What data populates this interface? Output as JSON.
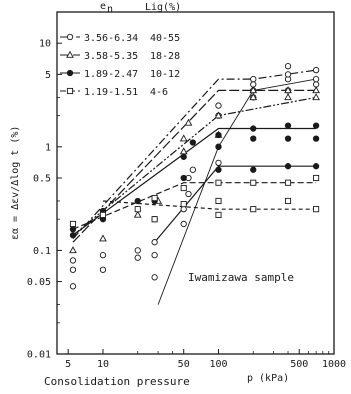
{
  "chart_data": {
    "type": "scatter",
    "xlabel": "Consolidation pressure",
    "xunit": "p (kPa)",
    "ylabel": "εα = Δεv/Δlog t  (%)",
    "annotation": "Iwamizawa sample",
    "x_scale": "log",
    "y_scale": "log",
    "xlim": [
      4,
      1000
    ],
    "ylim": [
      0.01,
      20
    ],
    "x_ticks": [
      5,
      10,
      50,
      100,
      500,
      1000
    ],
    "x_tick_labels": [
      "5",
      "10",
      "50",
      "100",
      "500",
      "1000"
    ],
    "y_ticks": [
      0.01,
      0.05,
      0.1,
      0.5,
      1,
      5,
      10
    ],
    "y_tick_labels": [
      "0.01",
      "0.05",
      "0.1",
      "0.5",
      "1",
      "5",
      "10"
    ],
    "legend": {
      "placement": "top-left",
      "header_e": "e",
      "header_e_sub": "n",
      "header_lig": "Lig(%)",
      "entries": [
        {
          "symbol": "open-circle",
          "e_range": "3.56-6.34",
          "lig": "40-55"
        },
        {
          "symbol": "open-triangle",
          "e_range": "3.58-5.35",
          "lig": "18-28"
        },
        {
          "symbol": "filled-circle",
          "e_range": "1.89-2.47",
          "lig": "10-12"
        },
        {
          "symbol": "open-square",
          "e_range": "1.19-1.51",
          "lig": "4-6"
        }
      ]
    },
    "series": [
      {
        "symbol": "open-circle",
        "points": [
          [
            5.5,
            0.045
          ],
          [
            5.5,
            0.065
          ],
          [
            5.5,
            0.08
          ],
          [
            10,
            0.065
          ],
          [
            10,
            0.09
          ],
          [
            20,
            0.085
          ],
          [
            20,
            0.1
          ],
          [
            28,
            0.055
          ],
          [
            28,
            0.09
          ],
          [
            28,
            0.12
          ],
          [
            50,
            0.18
          ],
          [
            50,
            0.25
          ],
          [
            55,
            0.35
          ],
          [
            55,
            0.5
          ],
          [
            60,
            0.6
          ],
          [
            100,
            0.7
          ],
          [
            100,
            1.0
          ],
          [
            100,
            2.0
          ],
          [
            100,
            2.5
          ],
          [
            200,
            3.0
          ],
          [
            200,
            3.5
          ],
          [
            200,
            4.0
          ],
          [
            200,
            4.5
          ],
          [
            400,
            3.5
          ],
          [
            400,
            4.5
          ],
          [
            400,
            5.0
          ],
          [
            400,
            6.0
          ],
          [
            700,
            4.0
          ],
          [
            700,
            4.5
          ],
          [
            700,
            5.5
          ]
        ],
        "fit_lines": [
          {
            "style": "dash-dot",
            "points": [
              [
                5.5,
                0.13
              ],
              [
                100,
                4.5
              ],
              [
                200,
                4.5
              ],
              [
                700,
                5.5
              ]
            ]
          },
          {
            "style": "solid-thin",
            "points": [
              [
                30,
                0.03
              ],
              [
                100,
                1.0
              ],
              [
                200,
                3.5
              ],
              [
                700,
                4.5
              ]
            ]
          }
        ]
      },
      {
        "symbol": "open-triangle",
        "points": [
          [
            5.5,
            0.1
          ],
          [
            10,
            0.13
          ],
          [
            20,
            0.22
          ],
          [
            30,
            0.3
          ],
          [
            50,
            0.9
          ],
          [
            50,
            1.2
          ],
          [
            55,
            1.7
          ],
          [
            100,
            1.3
          ],
          [
            100,
            2.0
          ],
          [
            200,
            3.0
          ],
          [
            200,
            3.5
          ],
          [
            400,
            3.0
          ],
          [
            400,
            3.5
          ],
          [
            700,
            3.0
          ],
          [
            700,
            3.5
          ]
        ],
        "fit_lines": [
          {
            "style": "long-dash",
            "points": [
              [
                5.5,
                0.12
              ],
              [
                100,
                3.5
              ],
              [
                700,
                3.5
              ]
            ]
          },
          {
            "style": "dash-dot-dot",
            "points": [
              [
                5.5,
                0.14
              ],
              [
                100,
                2.0
              ],
              [
                700,
                3.0
              ]
            ]
          }
        ]
      },
      {
        "symbol": "filled-circle",
        "points": [
          [
            5.5,
            0.14
          ],
          [
            5.5,
            0.16
          ],
          [
            10,
            0.2
          ],
          [
            10,
            0.24
          ],
          [
            20,
            0.3
          ],
          [
            28,
            0.2
          ],
          [
            28,
            0.3
          ],
          [
            50,
            0.5
          ],
          [
            50,
            0.8
          ],
          [
            60,
            1.1
          ],
          [
            100,
            0.6
          ],
          [
            100,
            1.0
          ],
          [
            100,
            1.3
          ],
          [
            200,
            0.6
          ],
          [
            200,
            1.2
          ],
          [
            200,
            1.5
          ],
          [
            400,
            0.65
          ],
          [
            400,
            1.2
          ],
          [
            400,
            1.6
          ],
          [
            700,
            0.65
          ],
          [
            700,
            1.2
          ],
          [
            700,
            1.6
          ]
        ],
        "fit_lines": [
          {
            "style": "solid",
            "points": [
              [
                5.5,
                0.14
              ],
              [
                100,
                1.5
              ],
              [
                700,
                1.5
              ]
            ]
          },
          {
            "style": "solid",
            "points": [
              [
                28,
                0.12
              ],
              [
                100,
                0.65
              ],
              [
                700,
                0.65
              ]
            ]
          }
        ]
      },
      {
        "symbol": "open-square",
        "points": [
          [
            5.5,
            0.18
          ],
          [
            10,
            0.22
          ],
          [
            20,
            0.25
          ],
          [
            28,
            0.2
          ],
          [
            28,
            0.32
          ],
          [
            50,
            0.28
          ],
          [
            50,
            0.4
          ],
          [
            100,
            0.22
          ],
          [
            100,
            0.3
          ],
          [
            100,
            0.45
          ],
          [
            200,
            0.25
          ],
          [
            200,
            0.45
          ],
          [
            400,
            0.3
          ],
          [
            400,
            0.45
          ],
          [
            700,
            0.25
          ],
          [
            700,
            0.5
          ]
        ],
        "fit_lines": [
          {
            "style": "dashed",
            "points": [
              [
                5.5,
                0.16
              ],
              [
                50,
                0.45
              ],
              [
                700,
                0.45
              ]
            ]
          },
          {
            "style": "short-dash",
            "points": [
              [
                10,
                0.3
              ],
              [
                100,
                0.25
              ],
              [
                700,
                0.25
              ]
            ]
          }
        ]
      }
    ]
  }
}
